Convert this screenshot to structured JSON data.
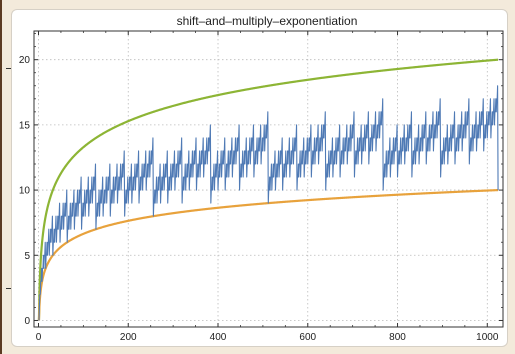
{
  "chart_data": {
    "type": "line",
    "title": "shift–and–multiply–exponentiation",
    "xlabel": "",
    "ylabel": "",
    "xlim": [
      -10,
      1035
    ],
    "ylim": [
      -0.5,
      22.2
    ],
    "xticks": [
      0,
      200,
      400,
      600,
      800,
      1000
    ],
    "yticks": [
      0,
      5,
      10,
      15,
      20
    ],
    "grid": true,
    "series": [
      {
        "color": "#4f7ab5",
        "function": "multiplications(n) = bit_length(n) - 1 + popcount(n) - 1 (sawtooth)",
        "x_range": [
          1,
          1024
        ]
      },
      {
        "color": "#8db535",
        "function": "2*log2(n)",
        "x_range": [
          1,
          1024
        ]
      },
      {
        "color": "#e8a23c",
        "function": "log2(n)",
        "x_range": [
          1,
          1024
        ]
      }
    ]
  },
  "colors": {
    "background": "#f3eadb",
    "plot_frame": "#333333",
    "grid": "#bbbbbb"
  }
}
